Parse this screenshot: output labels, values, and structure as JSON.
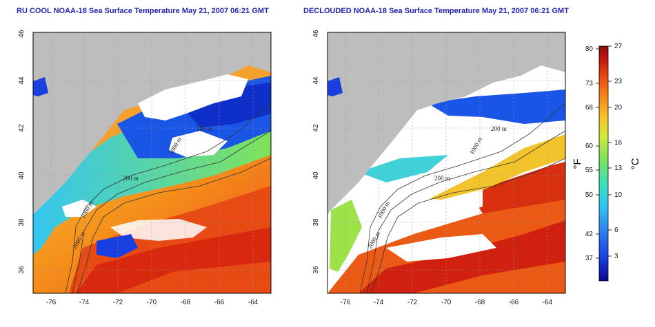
{
  "panels": [
    {
      "title": "RU COOL NOAA-18 Sea Surface Temperature May 21, 2007 06:21 GMT",
      "variant": "raw",
      "contour_labels": [
        "200 m",
        "1000 m",
        "2000 m",
        "200 m",
        "1000 m"
      ]
    },
    {
      "title": "DECLOUDED NOAA-18 Sea Surface Temperature May 21, 2007 06:21 GMT",
      "variant": "declouded",
      "contour_labels": [
        "200 m",
        "1000 m",
        "2000 m",
        "200 m",
        "1000 m"
      ]
    }
  ],
  "axes": {
    "x_ticks": [
      "-76",
      "-74",
      "-72",
      "-70",
      "-68",
      "-66",
      "-64"
    ],
    "y_ticks": [
      "46",
      "44",
      "42",
      "40",
      "38",
      "36"
    ]
  },
  "colorbar": {
    "fahrenheit_ticks": [
      "80",
      "73",
      "68",
      "60",
      "55",
      "50",
      "42",
      "37"
    ],
    "celsius_ticks": [
      "27",
      "23",
      "20",
      "16",
      "13",
      "10",
      "6",
      "3"
    ],
    "left_unit": "°F",
    "right_unit": "°C",
    "colors": [
      "#0a0a8c",
      "#1a3fe0",
      "#2f86f0",
      "#33c6f2",
      "#3fe0b8",
      "#7fe35a",
      "#d7e83a",
      "#f6c22a",
      "#f58a1a",
      "#ea4a12",
      "#c41a10",
      "#8c0c0c"
    ]
  }
}
